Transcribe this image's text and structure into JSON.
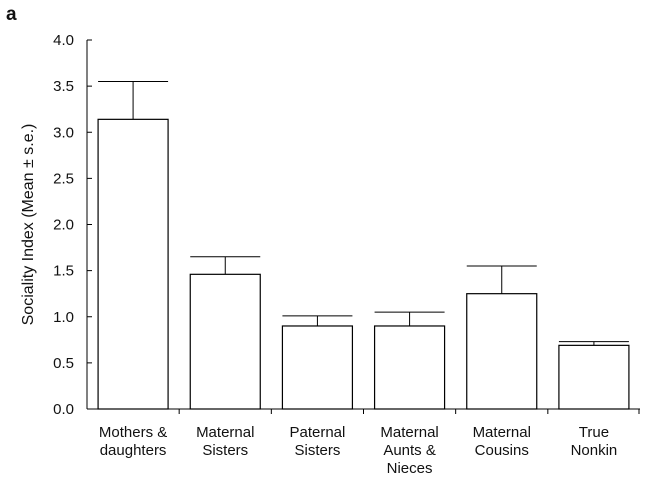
{
  "panel_label": "a",
  "chart_data": {
    "type": "bar",
    "title": "",
    "xlabel": "",
    "ylabel": "Sociality Index (Mean ± s.e.)",
    "ylim": [
      0,
      4.0
    ],
    "yticks": [
      "0.0",
      "0.5",
      "1.0",
      "1.5",
      "2.0",
      "2.5",
      "3.0",
      "3.5",
      "4.0"
    ],
    "categories": [
      [
        "Mothers &",
        "daughters"
      ],
      [
        "Maternal",
        "Sisters"
      ],
      [
        "Paternal",
        "Sisters"
      ],
      [
        "Maternal",
        "Aunts &",
        "Nieces"
      ],
      [
        "Maternal",
        "Cousins"
      ],
      [
        "True",
        "Nonkin"
      ]
    ],
    "values": [
      3.14,
      1.46,
      0.9,
      0.9,
      1.25,
      0.69
    ],
    "errors": [
      0.41,
      0.19,
      0.11,
      0.15,
      0.3,
      0.04
    ],
    "bar_fill": "#ffffff",
    "bar_stroke": "#000000",
    "grid": false
  }
}
